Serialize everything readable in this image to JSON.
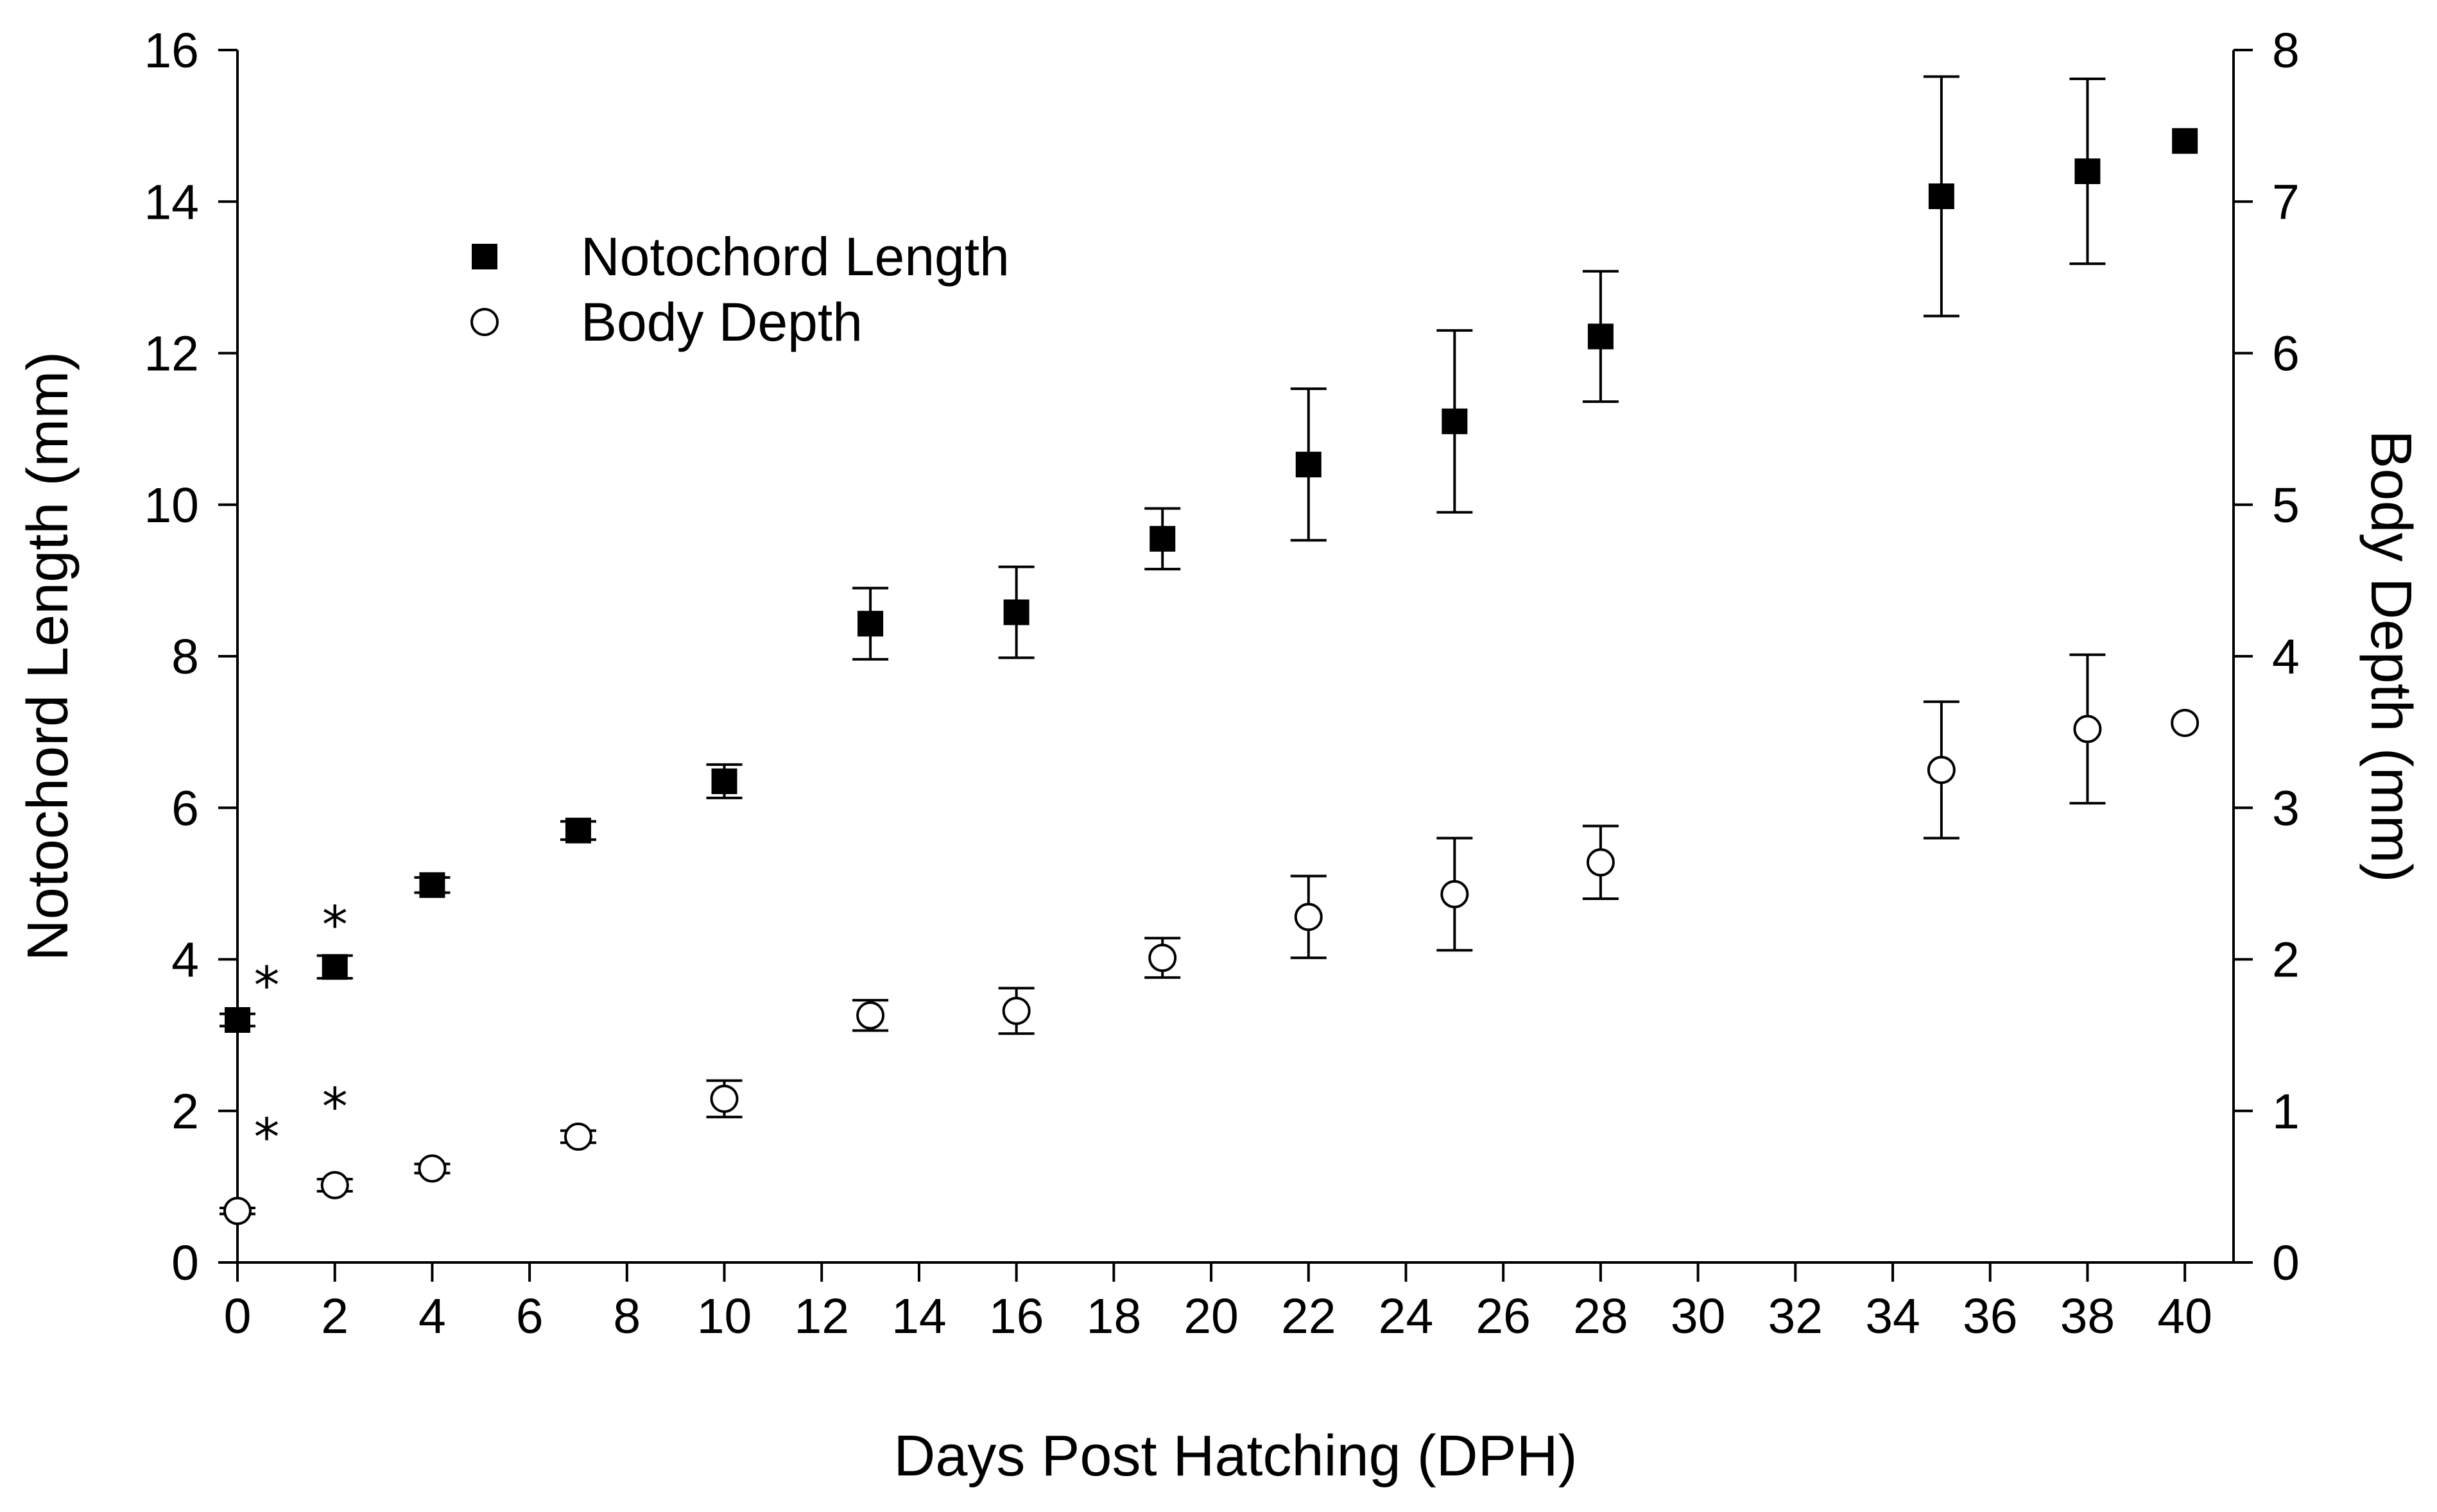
{
  "chart_data": {
    "type": "scatter",
    "title": "",
    "xlabel": "Days Post Hatching (DPH)",
    "ylabel_left": "Notochord Length (mm)",
    "ylabel_right": "Body Depth (mm)",
    "xlim": [
      0,
      41
    ],
    "ylim_left": [
      0,
      16
    ],
    "ylim_right": [
      0,
      8
    ],
    "x_ticks": [
      0,
      2,
      4,
      6,
      8,
      10,
      12,
      14,
      16,
      18,
      20,
      22,
      24,
      26,
      28,
      30,
      32,
      34,
      36,
      38,
      40
    ],
    "y_ticks_left": [
      0,
      2,
      4,
      6,
      8,
      10,
      12,
      14,
      16
    ],
    "y_ticks_right": [
      0,
      1,
      2,
      3,
      4,
      5,
      6,
      7,
      8
    ],
    "grid": false,
    "legend_position": "top-left",
    "series": [
      {
        "name": "Notochord Length",
        "axis": "left",
        "marker": "filled-square",
        "color": "#000000",
        "x": [
          0,
          2,
          4,
          7,
          10,
          13,
          16,
          19,
          22,
          25,
          28,
          35,
          38,
          40
        ],
        "values": [
          3.2,
          3.9,
          4.98,
          5.7,
          6.35,
          8.43,
          8.58,
          9.55,
          10.53,
          11.1,
          12.22,
          14.07,
          14.4,
          14.8
        ],
        "error": [
          0.08,
          0.15,
          0.1,
          0.12,
          0.22,
          0.47,
          0.6,
          0.4,
          1.0,
          1.2,
          0.86,
          1.58,
          1.22,
          0.0
        ]
      },
      {
        "name": "Body Depth",
        "axis": "right",
        "marker": "open-circle",
        "color": "#000000",
        "x": [
          0,
          2,
          4,
          7,
          10,
          13,
          16,
          19,
          22,
          25,
          28,
          35,
          38,
          40
        ],
        "values": [
          0.34,
          0.51,
          0.62,
          0.83,
          1.08,
          1.63,
          1.66,
          2.01,
          2.28,
          2.43,
          2.64,
          3.25,
          3.52,
          3.56
        ],
        "error": [
          0.02,
          0.04,
          0.03,
          0.04,
          0.12,
          0.1,
          0.15,
          0.13,
          0.27,
          0.37,
          0.24,
          0.45,
          0.49,
          0.0
        ]
      }
    ],
    "annotations": [
      {
        "text": "*",
        "x": 0.6,
        "axis": "left",
        "y": 3.8
      },
      {
        "text": "*",
        "x": 2,
        "axis": "left",
        "y": 4.6
      },
      {
        "text": "*",
        "x": 0.6,
        "axis": "right",
        "y": 0.9
      },
      {
        "text": "*",
        "x": 2,
        "axis": "right",
        "y": 1.1
      }
    ]
  }
}
